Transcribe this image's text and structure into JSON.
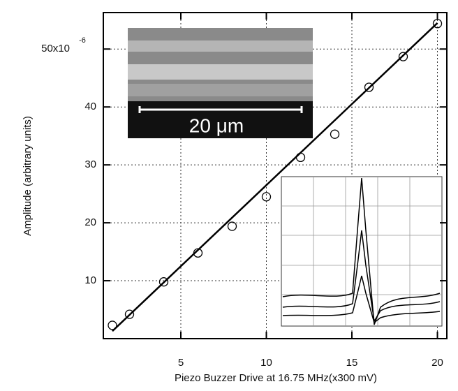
{
  "chart_data": {
    "type": "scatter",
    "xlabel": "Piezo Buzzer Drive at 16.75 MHz(x300 mV)",
    "ylabel": "Amplitude (arbitrary units)",
    "y_exponent": "-6",
    "inset_scale_label": "20 μm",
    "x": [
      1,
      2,
      4,
      6,
      8,
      10,
      12,
      14,
      16,
      18,
      20
    ],
    "values": [
      2.3,
      4.2,
      9.8,
      14.8,
      19.4,
      24.5,
      31.3,
      35.3,
      43.4,
      48.7,
      54.4
    ],
    "color": "#000000",
    "fit": {
      "x": [
        1,
        20
      ],
      "y": [
        1.3,
        54.5
      ]
    },
    "xlim": [
      0.47,
      20.55
    ],
    "ylim": [
      0,
      56.3
    ],
    "xticks": [
      5,
      10,
      15,
      20
    ],
    "yticks": [
      10,
      20,
      30,
      40,
      {
        "value": 50,
        "label": "50x10"
      }
    ],
    "grid": true
  }
}
